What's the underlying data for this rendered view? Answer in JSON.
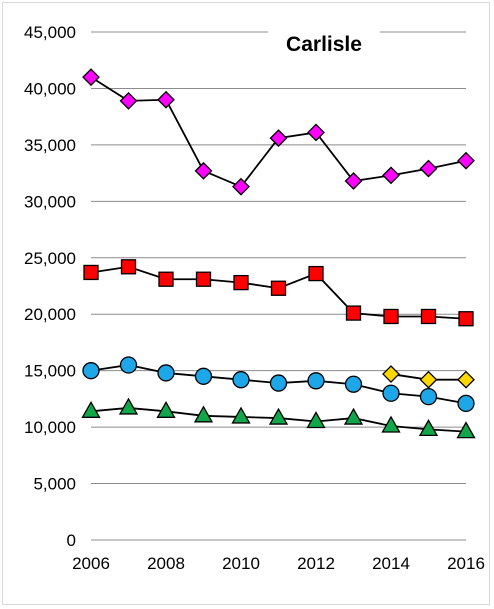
{
  "chart_data": {
    "type": "line",
    "title": "Carlisle",
    "xlabel": "",
    "ylabel": "",
    "x": [
      2006,
      2007,
      2008,
      2009,
      2010,
      2011,
      2012,
      2013,
      2014,
      2015,
      2016
    ],
    "x_tick_labels": [
      "2006",
      "2008",
      "2010",
      "2012",
      "2014",
      "2016"
    ],
    "y_tick_labels": [
      "0",
      "5,000",
      "10,000",
      "15,000",
      "20,000",
      "25,000",
      "30,000",
      "35,000",
      "40,000",
      "45,000"
    ],
    "xlim": [
      2006,
      2016
    ],
    "ylim": [
      0,
      45000
    ],
    "grid": "horizontal",
    "legend": "none",
    "series": [
      {
        "marker": "diamond",
        "color": "#ff00ff",
        "values": [
          41000,
          38900,
          39000,
          32700,
          31300,
          35600,
          36100,
          31800,
          32300,
          32900,
          33600
        ]
      },
      {
        "marker": "square",
        "color": "#ff0000",
        "values": [
          23700,
          24200,
          23100,
          23100,
          22800,
          22300,
          23600,
          20100,
          19800,
          19800,
          19600
        ]
      },
      {
        "marker": "diamond",
        "color": "#ffd700",
        "values": [
          null,
          null,
          null,
          null,
          null,
          null,
          null,
          null,
          14700,
          14200,
          14200
        ]
      },
      {
        "marker": "circle",
        "color": "#1ea7e8",
        "values": [
          15000,
          15500,
          14800,
          14500,
          14200,
          13900,
          14100,
          13800,
          13000,
          12700,
          12100
        ]
      },
      {
        "marker": "triangle",
        "color": "#12a64a",
        "values": [
          11400,
          11700,
          11400,
          11000,
          10900,
          10800,
          10500,
          10800,
          10100,
          9800,
          9600
        ]
      }
    ]
  }
}
